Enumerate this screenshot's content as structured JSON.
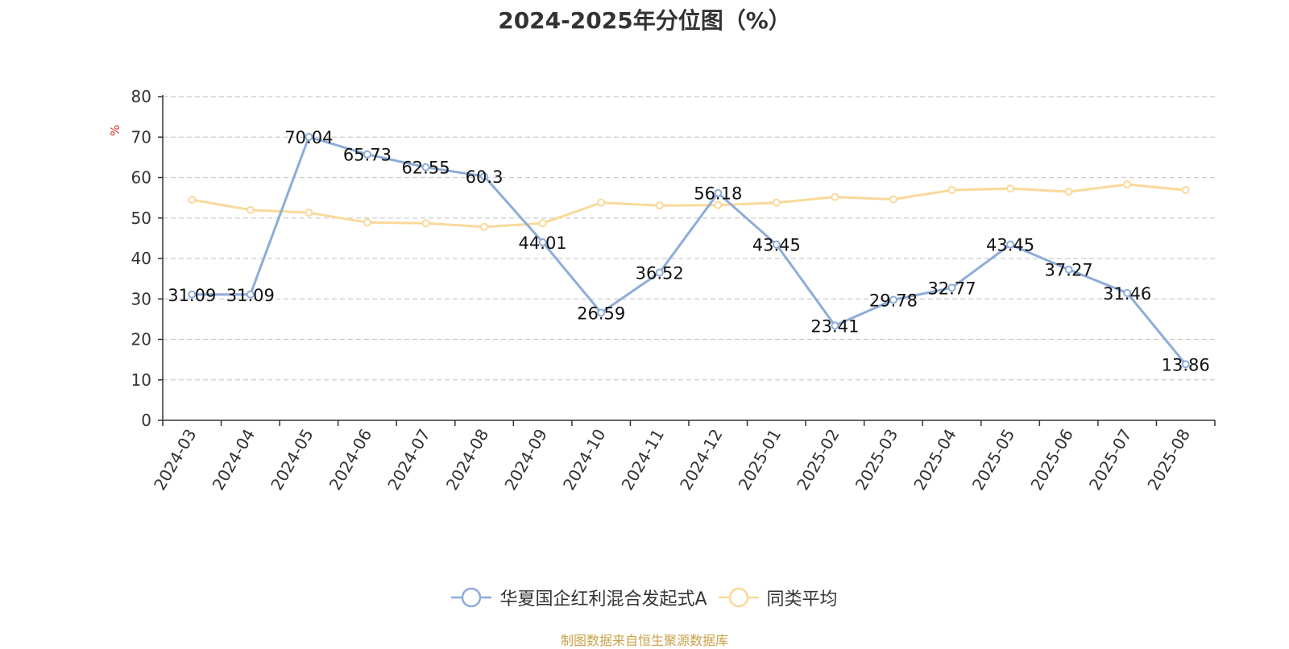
{
  "title": "2024-2025年分位图（%）",
  "source_note": "制图数据来自恒生聚源数据库",
  "chart_data": {
    "type": "line",
    "title": "2024-2025年分位图（%）",
    "xlabel": "",
    "ylabel": "%",
    "ylim": [
      0,
      80
    ],
    "yticks": [
      0,
      10,
      20,
      30,
      40,
      50,
      60,
      70,
      80
    ],
    "grid": true,
    "legend_position": "bottom",
    "x": [
      "2024-03",
      "2024-04",
      "2024-05",
      "2024-06",
      "2024-07",
      "2024-08",
      "2024-09",
      "2024-10",
      "2024-11",
      "2024-12",
      "2025-01",
      "2025-02",
      "2025-03",
      "2025-04",
      "2025-05",
      "2025-06",
      "2025-07",
      "2025-08"
    ],
    "series": [
      {
        "name": "华夏国企红利混合发起式A",
        "color": "#8eacd8",
        "show_labels": true,
        "values": [
          31.09,
          31.09,
          70.04,
          65.73,
          62.55,
          60.3,
          44.01,
          26.59,
          36.52,
          56.18,
          43.45,
          23.41,
          29.78,
          32.77,
          43.45,
          37.27,
          31.46,
          13.86
        ],
        "labels": [
          "31.09",
          "31.09",
          "70.04",
          "65.73",
          "62.55",
          "60.3",
          "44.01",
          "26.59",
          "36.52",
          "56.18",
          "43.45",
          "23.41",
          "29.78",
          "32.77",
          "43.45",
          "37.27",
          "31.46",
          "13.86"
        ]
      },
      {
        "name": "同类平均",
        "color": "#fad99a",
        "show_labels": false,
        "values": [
          54.5,
          52.0,
          51.3,
          48.9,
          48.7,
          47.8,
          48.7,
          53.8,
          53.1,
          53.2,
          53.8,
          55.2,
          54.6,
          56.9,
          57.3,
          56.5,
          58.3,
          56.9
        ]
      }
    ]
  }
}
